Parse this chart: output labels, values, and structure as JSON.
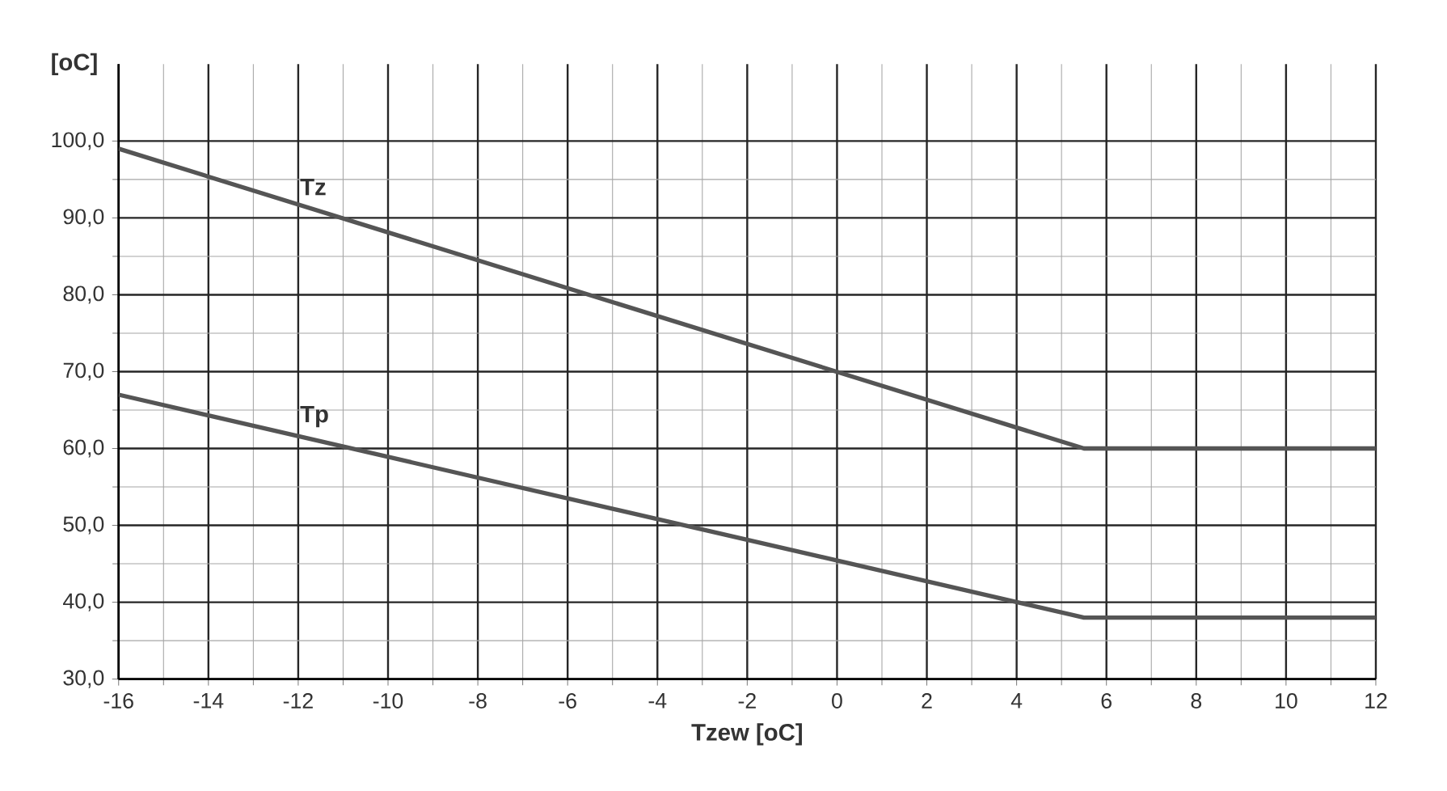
{
  "chart_data": {
    "type": "line",
    "xlabel": "Tzew [oC]",
    "ylabel": "[oC]",
    "xlim": [
      -16,
      12
    ],
    "ylim": [
      30,
      110
    ],
    "xticks": [
      -16,
      -14,
      -12,
      -10,
      -8,
      -6,
      -4,
      -2,
      0,
      2,
      4,
      6,
      8,
      10,
      12
    ],
    "yticks": [
      {
        "value": 30,
        "label": "30,0"
      },
      {
        "value": 40,
        "label": "40,0"
      },
      {
        "value": 50,
        "label": "50,0"
      },
      {
        "value": 60,
        "label": "60,0"
      },
      {
        "value": 70,
        "label": "70,0"
      },
      {
        "value": 80,
        "label": "80,0"
      },
      {
        "value": 90,
        "label": "90,0"
      },
      {
        "value": 100,
        "label": "100,0"
      }
    ],
    "grid": true,
    "marker": "none",
    "line_style": "solid",
    "series": [
      {
        "name": "Tz",
        "color": "#555555",
        "x": [
          -16,
          5.5,
          12
        ],
        "values": [
          99,
          60,
          60
        ]
      },
      {
        "name": "Tp",
        "color": "#555555",
        "x": [
          -16,
          5.5,
          12
        ],
        "values": [
          67,
          38,
          38
        ]
      }
    ]
  }
}
